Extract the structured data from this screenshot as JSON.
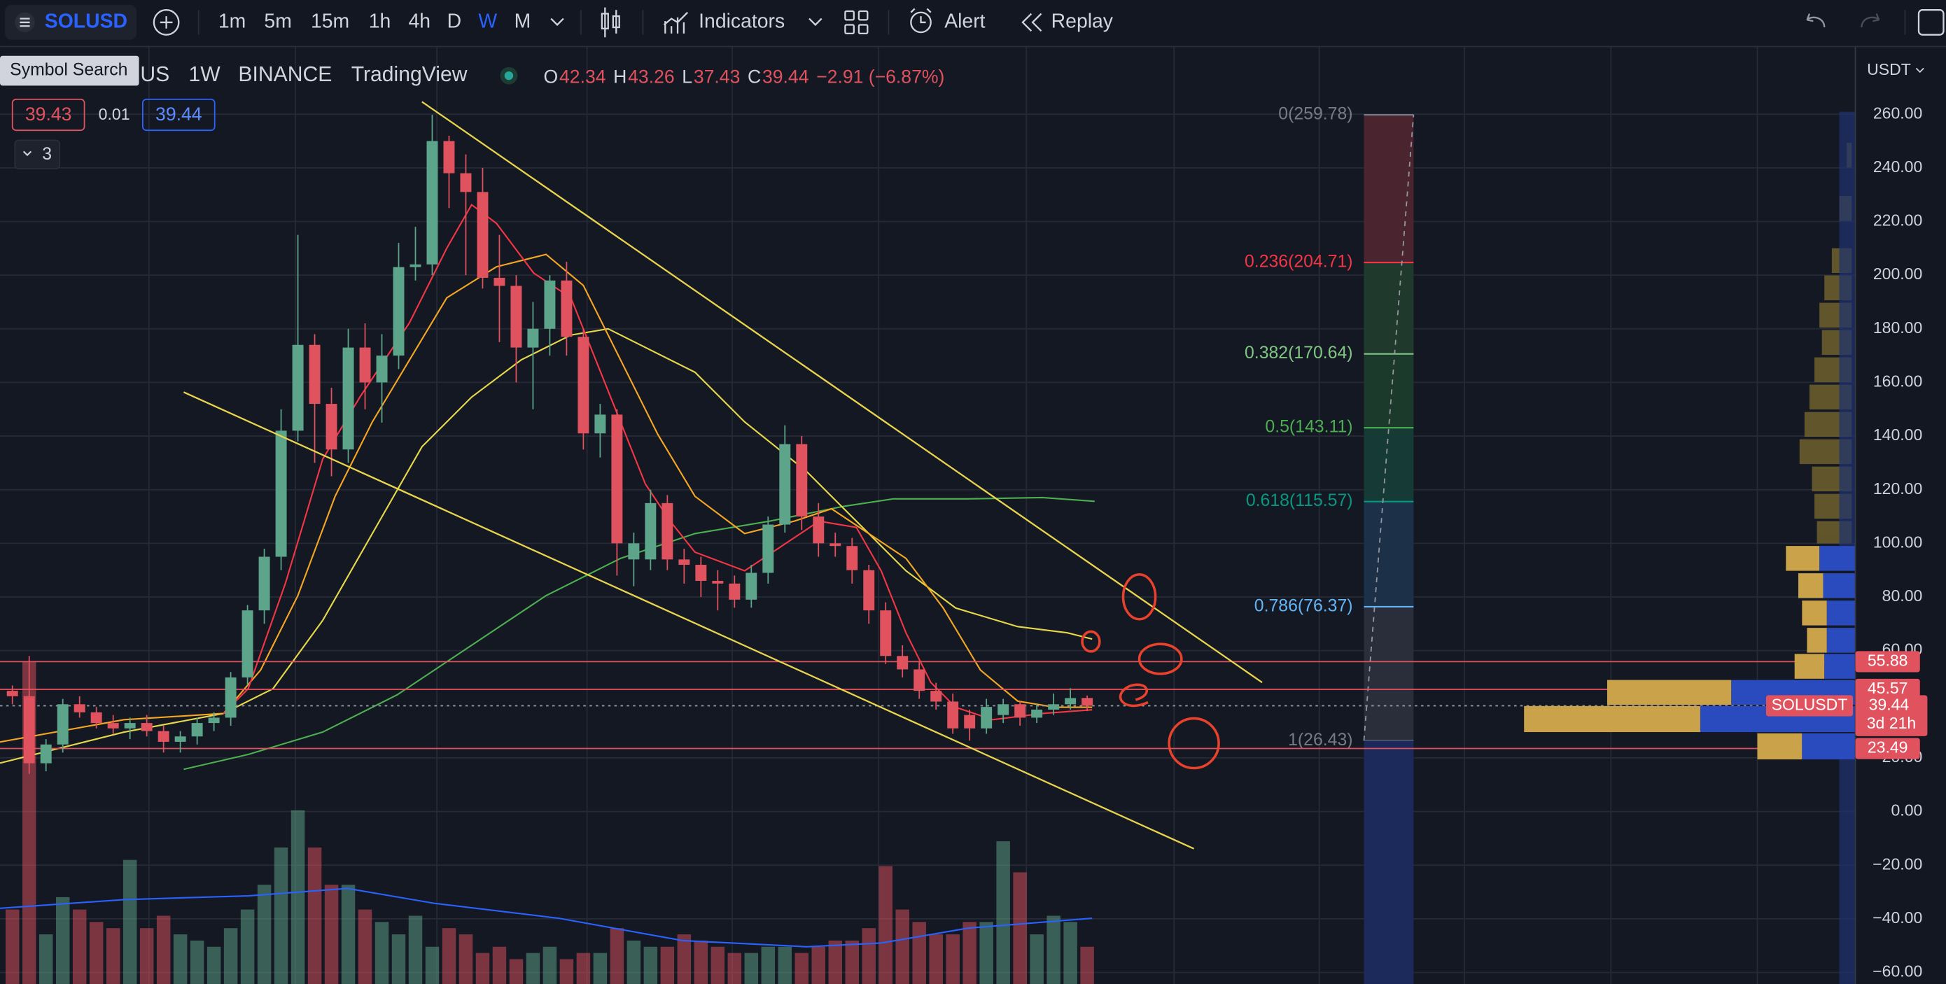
{
  "toolbar": {
    "symbol": "SOLUSD",
    "intervals": [
      "1m",
      "5m",
      "15m",
      "1h",
      "4h",
      "D",
      "W",
      "M"
    ],
    "active_interval": "W",
    "indicators": "Indicators",
    "alert": "Alert",
    "replay": "Replay"
  },
  "legend": {
    "tooltip": "Symbol Search",
    "symbol_suffix": "US",
    "interval": "1W",
    "exchange": "BINANCE",
    "source": "TradingView",
    "ohlc": [
      {
        "key": "O",
        "value": 42.34
      },
      {
        "key": "H",
        "value": 43.26
      },
      {
        "key": "L",
        "value": 37.43
      },
      {
        "key": "C",
        "value": 39.44
      }
    ],
    "change": "−2.91 (−6.87%)",
    "bid": 39.43,
    "spread": 0.01,
    "ask": 39.44,
    "indicator_count": 3
  },
  "chart": {
    "type": "candlestick",
    "currency": "USDT",
    "ylim": [
      -64.3,
      285
    ],
    "yticks": [
      {
        "value": 260,
        "label": "260.00"
      },
      {
        "value": 240,
        "label": "240.00"
      },
      {
        "value": 220,
        "label": "220.00"
      },
      {
        "value": 200,
        "label": "200.00"
      },
      {
        "value": 180,
        "label": "180.00"
      },
      {
        "value": 160,
        "label": "160.00"
      },
      {
        "value": 140,
        "label": "140.00"
      },
      {
        "value": 120,
        "label": "120.00"
      },
      {
        "value": 100,
        "label": "100.00"
      },
      {
        "value": 80,
        "label": "80.00"
      },
      {
        "value": 60,
        "label": "60.00"
      },
      {
        "value": 20,
        "label": "20.00"
      },
      {
        "value": 0,
        "label": "0.00"
      },
      {
        "value": -20,
        "label": "−20.00"
      },
      {
        "value": -40,
        "label": "−40.00"
      },
      {
        "value": -60,
        "label": "−60.00"
      }
    ],
    "up_color": "#5da58a",
    "down_color": "#e0525e",
    "candles": [
      [
        45,
        47,
        40,
        43
      ],
      [
        43,
        58,
        14,
        18
      ],
      [
        18,
        27,
        15,
        25
      ],
      [
        25,
        42,
        22,
        40
      ],
      [
        40,
        43,
        35,
        37
      ],
      [
        37,
        39,
        31,
        33
      ],
      [
        33,
        36,
        29,
        31
      ],
      [
        31,
        35,
        27,
        33
      ],
      [
        33,
        36,
        28,
        30
      ],
      [
        30,
        32,
        22,
        26
      ],
      [
        26,
        30,
        22,
        28
      ],
      [
        28,
        35,
        25,
        33
      ],
      [
        33,
        37,
        30,
        35
      ],
      [
        35,
        52,
        32,
        50
      ],
      [
        50,
        77,
        47,
        75
      ],
      [
        75,
        98,
        70,
        95
      ],
      [
        95,
        150,
        90,
        142
      ],
      [
        142,
        215,
        138,
        174
      ],
      [
        174,
        178,
        130,
        152
      ],
      [
        152,
        158,
        125,
        135
      ],
      [
        135,
        180,
        130,
        173
      ],
      [
        173,
        182,
        150,
        160
      ],
      [
        160,
        178,
        145,
        170
      ],
      [
        170,
        212,
        165,
        203
      ],
      [
        203,
        218,
        198,
        204
      ],
      [
        204,
        259.78,
        200,
        250
      ],
      [
        250,
        252,
        225,
        238
      ],
      [
        238,
        245,
        200,
        231
      ],
      [
        231,
        240,
        195,
        199
      ],
      [
        199,
        215,
        175,
        196
      ],
      [
        196,
        200,
        160,
        173
      ],
      [
        173,
        190,
        150,
        180
      ],
      [
        180,
        200,
        170,
        198
      ],
      [
        198,
        205,
        170,
        177
      ],
      [
        177,
        180,
        135,
        141
      ],
      [
        141,
        152,
        132,
        148
      ],
      [
        148,
        150,
        88,
        100
      ],
      [
        94,
        104,
        84,
        100
      ],
      [
        94,
        120,
        90,
        115
      ],
      [
        115,
        118,
        90,
        94
      ],
      [
        94,
        98,
        85,
        92
      ],
      [
        92,
        95,
        80,
        86
      ],
      [
        86,
        90,
        75,
        85
      ],
      [
        85,
        88,
        76,
        79
      ],
      [
        79,
        92,
        76,
        89
      ],
      [
        89,
        110,
        85,
        107
      ],
      [
        107,
        144,
        104,
        137
      ],
      [
        137,
        140,
        105,
        110
      ],
      [
        110,
        115,
        95,
        100
      ],
      [
        100,
        104,
        95,
        99
      ],
      [
        99,
        102,
        85,
        90
      ],
      [
        90,
        92,
        70,
        75
      ],
      [
        75,
        78,
        55,
        58
      ],
      [
        58,
        62,
        50,
        53
      ],
      [
        53,
        56,
        42,
        45
      ],
      [
        45,
        48,
        38,
        41
      ],
      [
        41,
        44,
        29,
        31
      ],
      [
        36,
        38,
        26.43,
        31
      ],
      [
        31,
        42,
        29,
        39
      ],
      [
        36,
        42,
        33,
        40
      ],
      [
        40,
        41,
        32,
        35
      ],
      [
        35,
        40,
        33,
        38
      ],
      [
        38,
        44,
        36,
        40
      ],
      [
        40,
        46,
        38,
        42.3
      ],
      [
        42.34,
        43.26,
        37.43,
        39.44
      ]
    ],
    "volume": [
      60,
      260,
      40,
      70,
      60,
      50,
      45,
      100,
      45,
      55,
      40,
      35,
      30,
      45,
      60,
      80,
      110,
      140,
      110,
      80,
      80,
      60,
      50,
      40,
      55,
      30,
      45,
      40,
      25,
      30,
      20,
      25,
      30,
      20,
      25,
      25,
      45,
      35,
      30,
      30,
      40,
      35,
      30,
      25,
      25,
      30,
      30,
      25,
      30,
      35,
      35,
      45,
      95,
      60,
      50,
      40,
      40,
      50,
      50,
      115,
      90,
      40,
      55,
      50,
      30
    ],
    "fib_levels": [
      {
        "value": 259.78,
        "label": "0(259.78)",
        "color": "#787b86"
      },
      {
        "value": 204.71,
        "label": "0.236(204.71)",
        "color": "#f23645"
      },
      {
        "value": 170.64,
        "label": "0.382(170.64)",
        "color": "#81c784"
      },
      {
        "value": 143.11,
        "label": "0.5(143.11)",
        "color": "#4caf50"
      },
      {
        "value": 115.57,
        "label": "0.618(115.57)",
        "color": "#089981"
      },
      {
        "value": 76.37,
        "label": "0.786(76.37)",
        "color": "#64b5f6"
      },
      {
        "value": 26.43,
        "label": "1(26.43)",
        "color": "#787b86"
      }
    ],
    "price_lines": [
      55.88,
      45.57,
      23.49
    ],
    "last_price": {
      "symbol": "SOLUSDT",
      "value": 39.44,
      "countdown": "3d 21h"
    }
  }
}
